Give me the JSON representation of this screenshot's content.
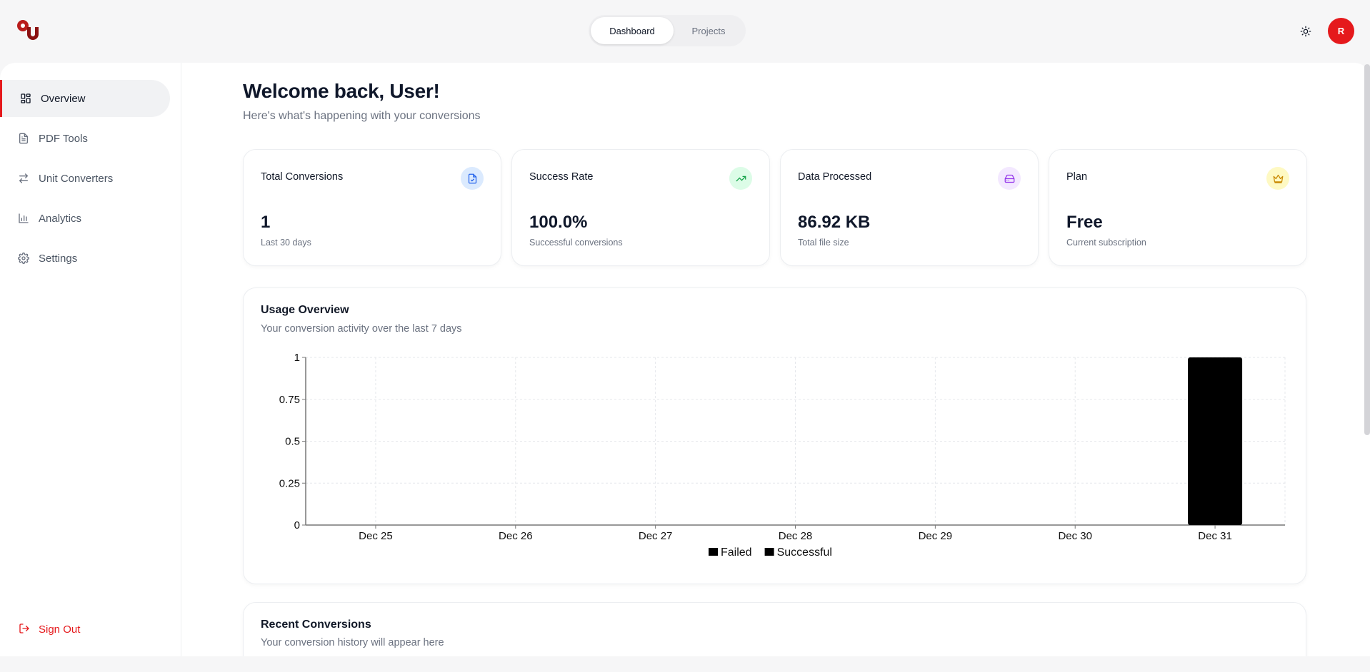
{
  "nav": {
    "tabs": [
      {
        "label": "Dashboard",
        "active": true
      },
      {
        "label": "Projects",
        "active": false
      }
    ]
  },
  "user": {
    "avatar_letter": "R",
    "avatar_color": "#e5191c"
  },
  "sidebar": {
    "items": [
      {
        "label": "Overview",
        "icon": "grid-icon",
        "active": true
      },
      {
        "label": "PDF Tools",
        "icon": "file-icon"
      },
      {
        "label": "Unit Converters",
        "icon": "arrows-swap-icon"
      },
      {
        "label": "Analytics",
        "icon": "bar-chart-icon"
      },
      {
        "label": "Settings",
        "icon": "gear-icon"
      }
    ],
    "signout_label": "Sign Out"
  },
  "header": {
    "welcome": "Welcome back, User!",
    "subtitle": "Here's what's happening with your conversions"
  },
  "stats": [
    {
      "title": "Total Conversions",
      "value": "1",
      "note": "Last 30 days",
      "icon": "file-check-icon",
      "icon_bg": "#dbeafe",
      "icon_color": "#2563eb"
    },
    {
      "title": "Success Rate",
      "value": "100.0%",
      "note": "Successful conversions",
      "icon": "trending-up-icon",
      "icon_bg": "#dcfce7",
      "icon_color": "#16a34a"
    },
    {
      "title": "Data Processed",
      "value": "86.92 KB",
      "note": "Total file size",
      "icon": "hard-drive-icon",
      "icon_bg": "#f3e8ff",
      "icon_color": "#9333ea"
    },
    {
      "title": "Plan",
      "value": "Free",
      "note": "Current subscription",
      "icon": "crown-icon",
      "icon_bg": "#fef9c3",
      "icon_color": "#ca8a04"
    }
  ],
  "usage": {
    "title": "Usage Overview",
    "subtitle": "Your conversion activity over the last 7 days"
  },
  "recent": {
    "title": "Recent Conversions",
    "subtitle": "Your conversion history will appear here"
  },
  "chart_data": {
    "type": "bar",
    "stacked": true,
    "categories": [
      "Dec 25",
      "Dec 26",
      "Dec 27",
      "Dec 28",
      "Dec 29",
      "Dec 30",
      "Dec 31"
    ],
    "series": [
      {
        "name": "Failed",
        "values": [
          0,
          0,
          0,
          0,
          0,
          0,
          0
        ],
        "color": "#000000"
      },
      {
        "name": "Successful",
        "values": [
          0,
          0,
          0,
          0,
          0,
          0,
          1
        ],
        "color": "#000000"
      }
    ],
    "yticks": [
      "0",
      "0.25",
      "0.5",
      "0.75",
      "1"
    ],
    "ylim": [
      0,
      1
    ],
    "grid": true,
    "legend": "bottom"
  }
}
